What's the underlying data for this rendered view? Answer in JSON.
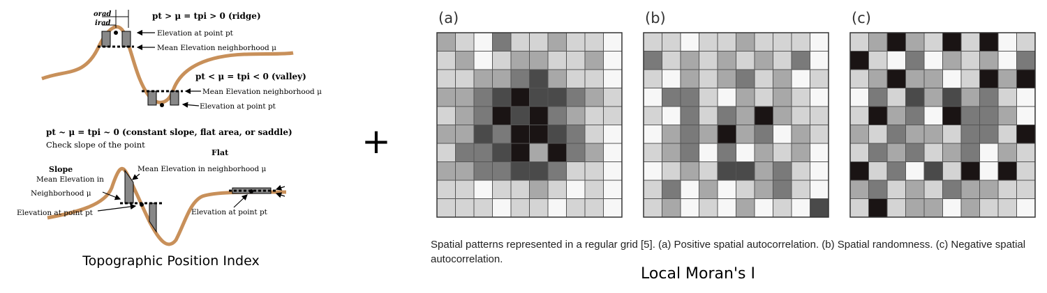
{
  "tpi": {
    "ridge_eq": "pt > μ = tpi > 0 (ridge)",
    "valley_eq": "pt < μ = tpi  < 0 (valley)",
    "flat_eq": "pt ~ μ = tpi ~ 0 (constant slope, flat area, or saddle)",
    "check_slope": "Check slope of the point",
    "orad": "orad",
    "irad": "irad",
    "elev_ridge": "Elevation at point pt",
    "mean_ridge": "Mean Elevation neighborhood μ",
    "mean_valley": "Mean Elevation neighborhood μ",
    "elev_valley": "Elevation at point pt",
    "flat_title": "Flat",
    "slope_title": "Slope",
    "slope_mean_1": "Mean Elevation in",
    "slope_mean_2": "Neighborhood μ",
    "mean_neigh": "Mean Elevation in neighborhood  μ",
    "elev_slope": "Elevation at point pt",
    "elev_flat": "Elevation at point pt",
    "caption": "Topographic Position Index"
  },
  "plus": "+",
  "moran": {
    "panels": [
      {
        "label": "(a)",
        "cells": [
          [
            2,
            1,
            0,
            3,
            1,
            1,
            2,
            1,
            1,
            0
          ],
          [
            1,
            2,
            0,
            1,
            2,
            2,
            1,
            1,
            2,
            0
          ],
          [
            1,
            1,
            2,
            2,
            3,
            4,
            2,
            1,
            1,
            0
          ],
          [
            2,
            2,
            3,
            4,
            5,
            4,
            4,
            3,
            2,
            1
          ],
          [
            1,
            2,
            3,
            5,
            4,
            5,
            3,
            2,
            1,
            1
          ],
          [
            2,
            2,
            4,
            3,
            5,
            5,
            4,
            3,
            1,
            0
          ],
          [
            1,
            3,
            3,
            4,
            5,
            2,
            5,
            3,
            2,
            0
          ],
          [
            2,
            2,
            3,
            3,
            4,
            4,
            3,
            1,
            1,
            0
          ],
          [
            1,
            1,
            0,
            1,
            1,
            2,
            1,
            0,
            1,
            0
          ],
          [
            1,
            1,
            1,
            0,
            1,
            1,
            0,
            1,
            1,
            0
          ]
        ]
      },
      {
        "label": "(b)",
        "cells": [
          [
            1,
            1,
            0,
            1,
            1,
            2,
            1,
            1,
            1,
            0
          ],
          [
            3,
            1,
            2,
            1,
            2,
            1,
            2,
            1,
            3,
            0
          ],
          [
            1,
            0,
            2,
            1,
            2,
            3,
            1,
            2,
            0,
            1
          ],
          [
            0,
            3,
            3,
            1,
            0,
            2,
            1,
            2,
            1,
            0
          ],
          [
            1,
            0,
            3,
            1,
            3,
            2,
            5,
            2,
            1,
            1
          ],
          [
            0,
            2,
            3,
            2,
            5,
            2,
            3,
            0,
            2,
            1
          ],
          [
            1,
            2,
            3,
            0,
            3,
            0,
            2,
            1,
            2,
            0
          ],
          [
            0,
            1,
            2,
            1,
            4,
            4,
            2,
            3,
            1,
            0
          ],
          [
            1,
            3,
            0,
            2,
            0,
            1,
            2,
            3,
            1,
            0
          ],
          [
            1,
            2,
            0,
            1,
            0,
            2,
            0,
            1,
            0,
            4
          ]
        ]
      },
      {
        "label": "(c)",
        "cells": [
          [
            1,
            2,
            5,
            2,
            1,
            5,
            1,
            5,
            0,
            1
          ],
          [
            5,
            1,
            0,
            3,
            0,
            2,
            1,
            2,
            0,
            3
          ],
          [
            1,
            2,
            5,
            2,
            2,
            0,
            1,
            5,
            2,
            5
          ],
          [
            0,
            3,
            1,
            4,
            2,
            4,
            2,
            3,
            1,
            0
          ],
          [
            1,
            5,
            2,
            3,
            0,
            5,
            3,
            3,
            2,
            0
          ],
          [
            2,
            1,
            3,
            2,
            2,
            1,
            3,
            3,
            1,
            5
          ],
          [
            1,
            3,
            2,
            3,
            1,
            2,
            3,
            0,
            2,
            1
          ],
          [
            5,
            1,
            3,
            0,
            4,
            1,
            5,
            0,
            5,
            1
          ],
          [
            2,
            3,
            1,
            2,
            1,
            3,
            2,
            2,
            1,
            1
          ],
          [
            1,
            5,
            1,
            2,
            2,
            0,
            2,
            1,
            1,
            0
          ]
        ]
      }
    ],
    "shades": [
      "#f7f7f7",
      "#d4d4d4",
      "#a8a8a8",
      "#7a7a7a",
      "#4a4a4a",
      "#1a1414"
    ],
    "caption": "Spatial patterns represented in a regular grid [5]. (a) Positive spatial autocorrelation. (b) Spatial randomness. (c) Negative spatial autocorrelation.",
    "title": "Local Moran's I"
  }
}
